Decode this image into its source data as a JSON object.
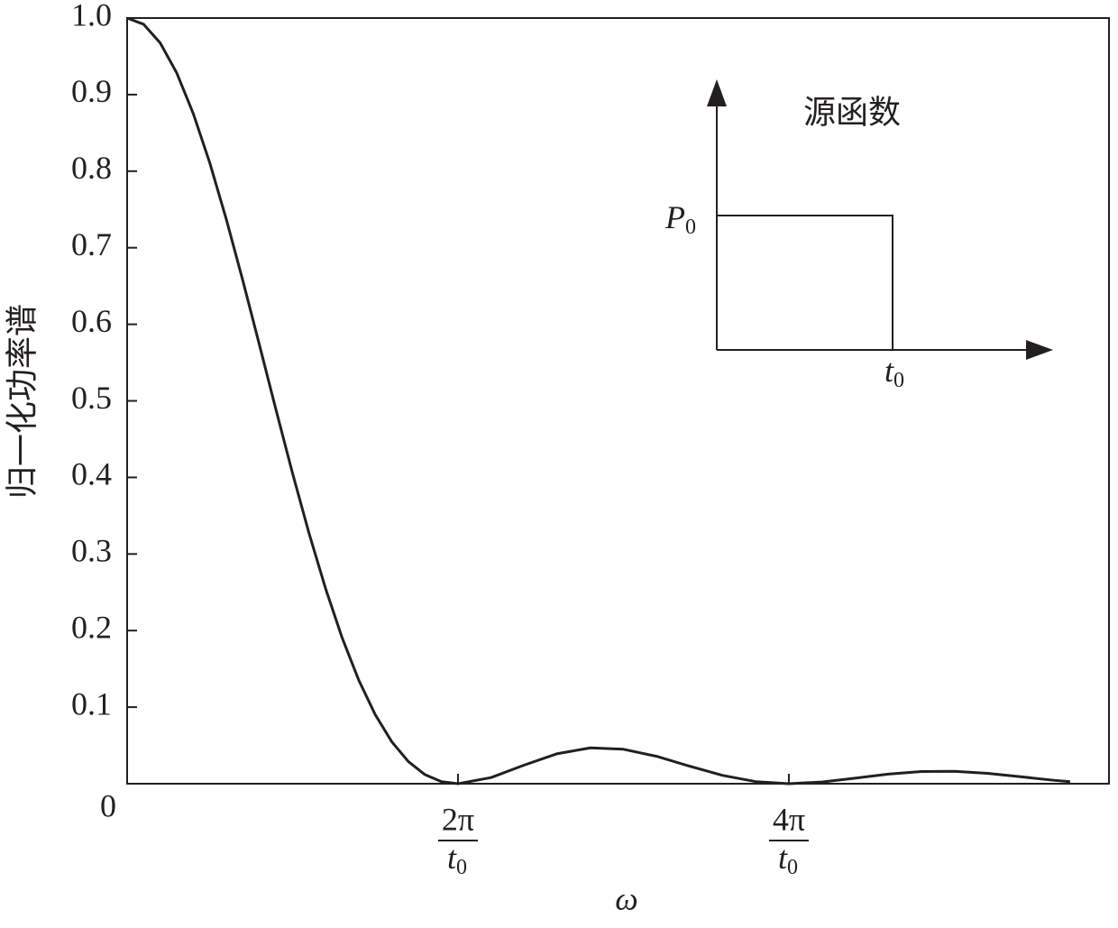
{
  "chart_data": {
    "type": "line",
    "y_label": "归一化功率谱",
    "x_label": "ω",
    "color": "#231f20",
    "x": [
      0,
      0.1,
      0.2,
      0.3,
      0.4,
      0.5,
      0.6,
      0.7,
      0.8,
      0.9,
      1.0,
      1.1,
      1.2,
      1.3,
      1.4,
      1.5,
      1.6,
      1.7,
      1.8,
      1.9,
      2.0,
      2.2,
      2.4,
      2.6,
      2.8,
      3.0,
      3.2,
      3.4,
      3.6,
      3.8,
      4.0,
      4.2,
      4.4,
      4.6,
      4.8,
      5.0,
      5.2,
      5.4,
      5.6,
      5.7
    ],
    "values": [
      1,
      0.9918,
      0.9675,
      0.9282,
      0.8751,
      0.8106,
      0.7368,
      0.6566,
      0.5729,
      0.4882,
      0.4053,
      0.3267,
      0.2546,
      0.1904,
      0.1353,
      0.0901,
      0.0547,
      0.0289,
      0.0119,
      0.0027,
      0,
      0.008,
      0.0243,
      0.0392,
      0.0468,
      0.045,
      0.0358,
      0.0229,
      0.0108,
      0.0027,
      0,
      0.0022,
      0.0072,
      0.0125,
      0.0159,
      0.0162,
      0.0136,
      0.0091,
      0.0045,
      0.0026
    ],
    "xlim": [
      0,
      5.935
    ],
    "ylim": [
      0,
      1
    ],
    "xticks": [
      0,
      {
        "value": 2,
        "label": {
          "num": "2π",
          "den": "t",
          "sub": "0"
        }
      },
      {
        "value": 4,
        "label": {
          "num": "4π",
          "den": "t",
          "sub": "0"
        }
      }
    ],
    "yticks": [
      0.1,
      0.2,
      0.3,
      0.4,
      0.5,
      0.6,
      0.7,
      0.8,
      0.9,
      {
        "value": 1,
        "label": "1.0"
      }
    ]
  },
  "inset": {
    "title": "源函数",
    "y_label": {
      "base": "P",
      "sub": "0"
    },
    "x_label": {
      "base": "t",
      "sub": "0"
    }
  }
}
